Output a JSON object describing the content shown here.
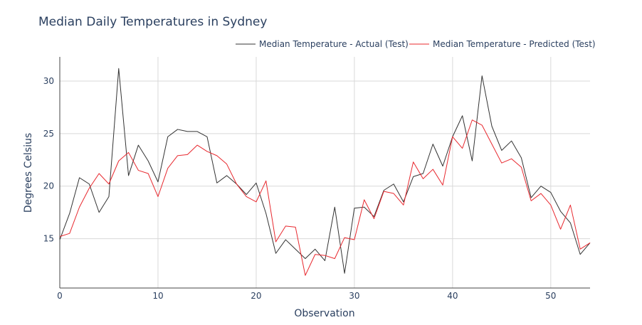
{
  "chart_data": {
    "type": "line",
    "title": "Median Daily Temperatures in Sydney",
    "xlabel": "Observation",
    "ylabel": "Degrees Celsius",
    "xlim": [
      0,
      54
    ],
    "ylim": [
      10.3,
      32.3
    ],
    "x_ticks": [
      0,
      10,
      20,
      30,
      40,
      50
    ],
    "y_ticks": [
      15,
      20,
      25,
      30
    ],
    "grid": true,
    "legend_position": "top-right",
    "series": [
      {
        "name": "Median Temperature - Actual (Test)",
        "color": "#333333",
        "values": [
          14.9,
          17.4,
          20.8,
          20.2,
          17.5,
          19.0,
          31.2,
          21.0,
          23.9,
          22.4,
          20.4,
          24.7,
          25.4,
          25.2,
          25.2,
          24.7,
          20.3,
          21.0,
          20.2,
          19.2,
          20.3,
          17.4,
          13.6,
          14.9,
          14.0,
          13.1,
          14.0,
          12.9,
          18.0,
          11.7,
          17.9,
          18.0,
          17.1,
          19.6,
          20.2,
          18.5,
          20.9,
          21.2,
          24.0,
          21.9,
          24.7,
          26.7,
          22.4,
          30.5,
          25.7,
          23.4,
          24.3,
          22.7,
          18.9,
          20.0,
          19.4,
          17.6,
          16.5,
          13.5,
          14.6
        ]
      },
      {
        "name": "Median Temperature - Predicted (Test)",
        "color": "#e8282e",
        "values": [
          15.2,
          15.5,
          18.0,
          19.8,
          21.2,
          20.2,
          22.4,
          23.2,
          21.5,
          21.2,
          19.0,
          21.7,
          22.9,
          23.0,
          23.9,
          23.3,
          22.9,
          22.1,
          20.2,
          19.0,
          18.5,
          20.5,
          14.7,
          16.2,
          16.1,
          11.5,
          13.5,
          13.4,
          13.1,
          15.1,
          14.9,
          18.7,
          16.9,
          19.5,
          19.3,
          18.2,
          22.3,
          20.7,
          21.6,
          20.1,
          24.7,
          23.6,
          26.3,
          25.8,
          24.0,
          22.2,
          22.6,
          21.8,
          18.6,
          19.3,
          18.2,
          15.9,
          18.2,
          14.0,
          14.6
        ]
      }
    ]
  }
}
